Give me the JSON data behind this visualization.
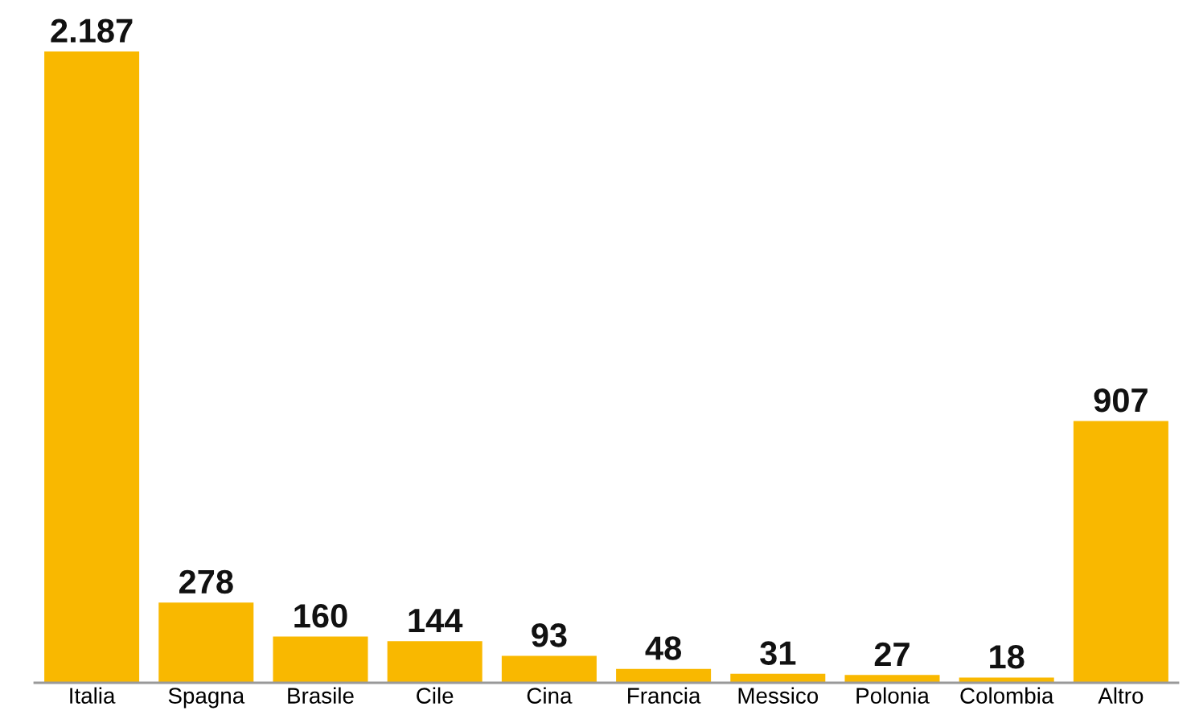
{
  "chart_data": {
    "type": "bar",
    "categories": [
      "Italia",
      "Spagna",
      "Brasile",
      "Cile",
      "Cina",
      "Francia",
      "Messico",
      "Polonia",
      "Colombia",
      "Altro"
    ],
    "values": [
      2187,
      278,
      160,
      144,
      93,
      48,
      31,
      27,
      18,
      907
    ],
    "value_labels": [
      "2.187",
      "278",
      "160",
      "144",
      "93",
      "48",
      "31",
      "27",
      "18",
      "907"
    ],
    "color": "#f9b800",
    "grid": false,
    "legend": false
  }
}
